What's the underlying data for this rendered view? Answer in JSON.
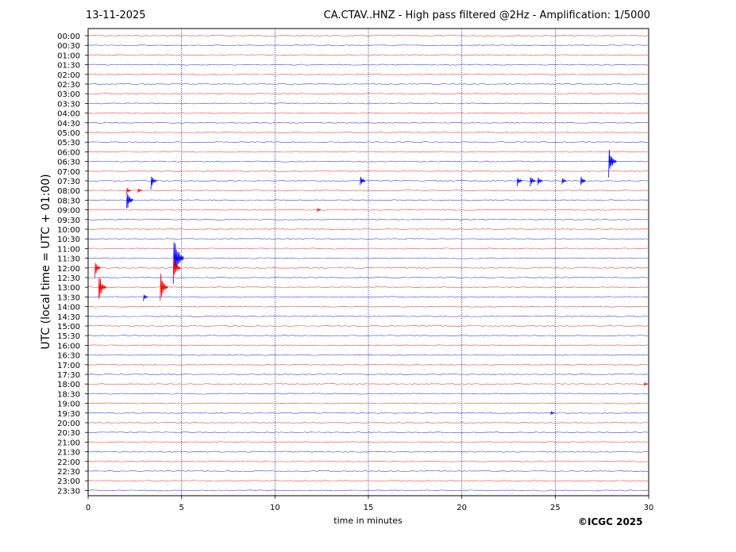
{
  "header": {
    "date": "13-11-2025",
    "title": "CA.CTAV..HNZ - High pass filtered @2Hz - Amplification: 1/5000"
  },
  "footer": {
    "copyright": "©ICGC 2025"
  },
  "chart_data": {
    "type": "line",
    "xlabel": "time in minutes",
    "ylabel": "UTC (local time = UTC + 01:00)",
    "xlim": [
      0,
      30
    ],
    "x_ticks": [
      0,
      5,
      10,
      15,
      20,
      25,
      30
    ],
    "vertical_gridlines_at": [
      5,
      10,
      15,
      20,
      25
    ],
    "grid": "dotted vertical",
    "trace_colors": [
      "#ff0000",
      "#0000ff"
    ],
    "trace_labels": [
      "00:00",
      "00:30",
      "01:00",
      "01:30",
      "02:00",
      "02:30",
      "03:00",
      "03:30",
      "04:00",
      "04:30",
      "05:00",
      "05:30",
      "06:00",
      "06:30",
      "07:00",
      "07:30",
      "08:00",
      "08:30",
      "09:00",
      "09:30",
      "10:00",
      "10:30",
      "11:00",
      "11:30",
      "12:00",
      "12:30",
      "13:00",
      "13:30",
      "14:00",
      "14:30",
      "15:00",
      "15:30",
      "16:00",
      "16:30",
      "17:00",
      "17:30",
      "18:00",
      "18:30",
      "19:00",
      "19:30",
      "20:00",
      "20:30",
      "21:00",
      "21:30",
      "22:00",
      "22:30",
      "23:00",
      "23:30"
    ],
    "events": [
      {
        "trace": "06:30",
        "minute": 27.9,
        "amplitude": 2.0
      },
      {
        "trace": "07:30",
        "minute": 3.4,
        "amplitude": 1.0
      },
      {
        "trace": "07:30",
        "minute": 14.6,
        "amplitude": 0.8
      },
      {
        "trace": "07:30",
        "minute": 23.0,
        "amplitude": 0.7
      },
      {
        "trace": "07:30",
        "minute": 23.7,
        "amplitude": 0.9
      },
      {
        "trace": "07:30",
        "minute": 24.1,
        "amplitude": 0.7
      },
      {
        "trace": "07:30",
        "minute": 25.4,
        "amplitude": 0.5
      },
      {
        "trace": "07:30",
        "minute": 26.4,
        "amplitude": 0.8
      },
      {
        "trace": "08:00",
        "minute": 2.1,
        "amplitude": 0.5
      },
      {
        "trace": "08:00",
        "minute": 2.7,
        "amplitude": 0.4
      },
      {
        "trace": "08:30",
        "minute": 2.1,
        "amplitude": 1.5
      },
      {
        "trace": "09:00",
        "minute": 12.3,
        "amplitude": 0.3
      },
      {
        "trace": "11:30",
        "minute": 4.6,
        "amplitude": 3.5
      },
      {
        "trace": "12:00",
        "minute": 0.4,
        "amplitude": 1.2
      },
      {
        "trace": "12:00",
        "minute": 4.6,
        "amplitude": 1.8
      },
      {
        "trace": "13:00",
        "minute": 0.6,
        "amplitude": 2.0
      },
      {
        "trace": "13:00",
        "minute": 3.9,
        "amplitude": 2.0
      },
      {
        "trace": "13:30",
        "minute": 3.0,
        "amplitude": 0.5
      },
      {
        "trace": "18:00",
        "minute": 29.8,
        "amplitude": 0.3
      },
      {
        "trace": "19:30",
        "minute": 24.8,
        "amplitude": 0.3
      }
    ]
  }
}
